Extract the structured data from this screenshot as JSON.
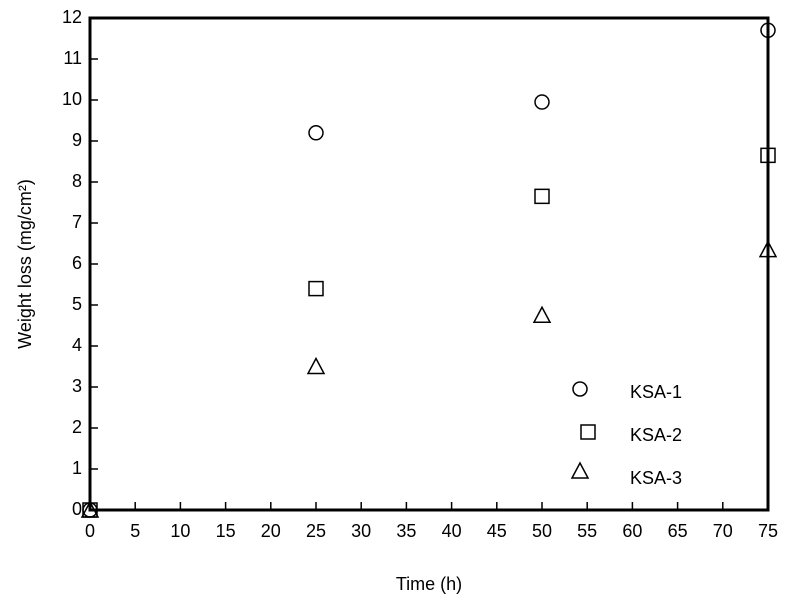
{
  "chart_data": {
    "type": "scatter",
    "x_label": "Time (h)",
    "y_label": "Weight loss (mg/cm²)",
    "x": [
      0,
      25,
      50,
      75
    ],
    "series": [
      {
        "name": "KSA-1",
        "marker": "circle",
        "color": "#000000",
        "values": [
          0,
          9.2,
          9.95,
          11.7
        ]
      },
      {
        "name": "KSA-2",
        "marker": "square",
        "color": "#000000",
        "values": [
          0,
          5.4,
          7.65,
          8.65
        ]
      },
      {
        "name": "KSA-3",
        "marker": "triangle",
        "color": "#000000",
        "values": [
          0,
          3.5,
          4.75,
          6.35
        ]
      }
    ],
    "xlim": [
      0,
      75
    ],
    "xticks": [
      0,
      5,
      10,
      15,
      20,
      25,
      30,
      35,
      40,
      45,
      50,
      55,
      60,
      65,
      70,
      75
    ],
    "ylim": [
      0,
      12
    ],
    "yticks": [
      0,
      1,
      2,
      3,
      4,
      5,
      6,
      7,
      8,
      9,
      10,
      11,
      12
    ],
    "legend": "lower right"
  }
}
